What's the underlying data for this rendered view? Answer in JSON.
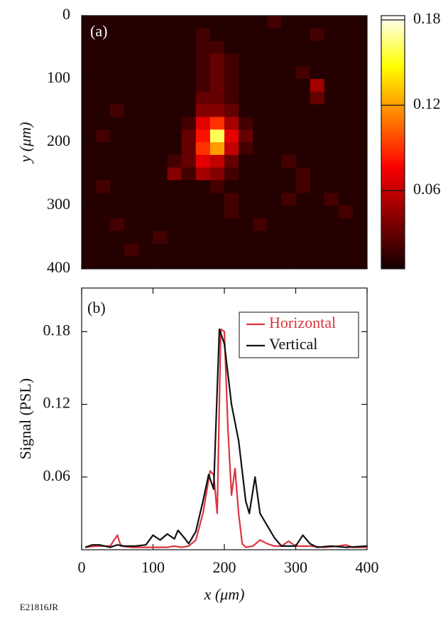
{
  "chart_data": [
    {
      "type": "heatmap",
      "label": "(a)",
      "y_label": "y (μm)",
      "x": [
        10,
        30,
        50,
        70,
        90,
        110,
        130,
        150,
        170,
        190,
        210,
        230,
        250,
        270,
        290,
        310,
        330,
        350,
        370,
        390
      ],
      "y": [
        10,
        30,
        50,
        70,
        90,
        110,
        130,
        150,
        170,
        190,
        210,
        230,
        250,
        270,
        290,
        310,
        330,
        350,
        370,
        390
      ],
      "z": [
        [
          0.01,
          0.01,
          0.01,
          0.01,
          0.01,
          0.01,
          0.01,
          0.01,
          0.01,
          0.01,
          0.01,
          0.01,
          0.01,
          0.02,
          0.01,
          0.01,
          0.01,
          0.01,
          0.01,
          0.01
        ],
        [
          0.01,
          0.01,
          0.01,
          0.01,
          0.01,
          0.01,
          0.01,
          0.01,
          0.02,
          0.01,
          0.01,
          0.01,
          0.01,
          0.01,
          0.01,
          0.01,
          0.02,
          0.01,
          0.01,
          0.01
        ],
        [
          0.01,
          0.01,
          0.01,
          0.01,
          0.01,
          0.01,
          0.01,
          0.01,
          0.02,
          0.02,
          0.01,
          0.01,
          0.01,
          0.01,
          0.01,
          0.01,
          0.01,
          0.01,
          0.01,
          0.01
        ],
        [
          0.01,
          0.01,
          0.01,
          0.01,
          0.01,
          0.01,
          0.01,
          0.01,
          0.02,
          0.03,
          0.02,
          0.01,
          0.01,
          0.01,
          0.01,
          0.01,
          0.01,
          0.01,
          0.01,
          0.01
        ],
        [
          0.01,
          0.01,
          0.01,
          0.01,
          0.01,
          0.01,
          0.01,
          0.01,
          0.02,
          0.03,
          0.02,
          0.01,
          0.01,
          0.01,
          0.01,
          0.02,
          0.01,
          0.01,
          0.01,
          0.01
        ],
        [
          0.01,
          0.01,
          0.01,
          0.01,
          0.01,
          0.01,
          0.01,
          0.01,
          0.02,
          0.03,
          0.02,
          0.01,
          0.01,
          0.01,
          0.01,
          0.01,
          0.05,
          0.01,
          0.01,
          0.01
        ],
        [
          0.01,
          0.01,
          0.01,
          0.01,
          0.01,
          0.01,
          0.01,
          0.01,
          0.03,
          0.03,
          0.02,
          0.01,
          0.01,
          0.01,
          0.01,
          0.01,
          0.03,
          0.01,
          0.01,
          0.01
        ],
        [
          0.01,
          0.01,
          0.02,
          0.01,
          0.01,
          0.01,
          0.01,
          0.01,
          0.04,
          0.04,
          0.03,
          0.01,
          0.01,
          0.01,
          0.01,
          0.01,
          0.01,
          0.01,
          0.01,
          0.01
        ],
        [
          0.01,
          0.01,
          0.01,
          0.01,
          0.01,
          0.01,
          0.01,
          0.02,
          0.07,
          0.09,
          0.05,
          0.02,
          0.01,
          0.01,
          0.01,
          0.01,
          0.01,
          0.01,
          0.01,
          0.01
        ],
        [
          0.01,
          0.02,
          0.01,
          0.01,
          0.01,
          0.01,
          0.01,
          0.03,
          0.08,
          0.16,
          0.07,
          0.03,
          0.01,
          0.01,
          0.01,
          0.01,
          0.01,
          0.01,
          0.01,
          0.01
        ],
        [
          0.01,
          0.01,
          0.01,
          0.01,
          0.01,
          0.01,
          0.01,
          0.03,
          0.09,
          0.12,
          0.06,
          0.02,
          0.01,
          0.01,
          0.01,
          0.01,
          0.01,
          0.01,
          0.01,
          0.01
        ],
        [
          0.01,
          0.01,
          0.01,
          0.01,
          0.01,
          0.01,
          0.02,
          0.03,
          0.07,
          0.06,
          0.03,
          0.01,
          0.01,
          0.01,
          0.02,
          0.01,
          0.01,
          0.01,
          0.01,
          0.01
        ],
        [
          0.01,
          0.01,
          0.01,
          0.01,
          0.01,
          0.01,
          0.04,
          0.02,
          0.05,
          0.04,
          0.02,
          0.01,
          0.01,
          0.01,
          0.01,
          0.02,
          0.01,
          0.01,
          0.01,
          0.01
        ],
        [
          0.01,
          0.02,
          0.01,
          0.01,
          0.01,
          0.01,
          0.01,
          0.01,
          0.01,
          0.02,
          0.01,
          0.01,
          0.01,
          0.01,
          0.01,
          0.02,
          0.01,
          0.01,
          0.01,
          0.01
        ],
        [
          0.01,
          0.01,
          0.01,
          0.01,
          0.01,
          0.01,
          0.01,
          0.01,
          0.01,
          0.01,
          0.02,
          0.01,
          0.01,
          0.01,
          0.02,
          0.01,
          0.01,
          0.02,
          0.01,
          0.01
        ],
        [
          0.01,
          0.01,
          0.01,
          0.01,
          0.01,
          0.01,
          0.01,
          0.01,
          0.01,
          0.01,
          0.02,
          0.01,
          0.01,
          0.01,
          0.01,
          0.01,
          0.01,
          0.01,
          0.02,
          0.01
        ],
        [
          0.01,
          0.01,
          0.02,
          0.01,
          0.01,
          0.01,
          0.01,
          0.01,
          0.01,
          0.01,
          0.01,
          0.01,
          0.02,
          0.01,
          0.01,
          0.01,
          0.01,
          0.01,
          0.01,
          0.01
        ],
        [
          0.01,
          0.01,
          0.01,
          0.01,
          0.01,
          0.02,
          0.01,
          0.01,
          0.01,
          0.01,
          0.01,
          0.01,
          0.01,
          0.01,
          0.01,
          0.01,
          0.01,
          0.01,
          0.01,
          0.01
        ],
        [
          0.01,
          0.01,
          0.01,
          0.02,
          0.01,
          0.01,
          0.01,
          0.01,
          0.01,
          0.01,
          0.01,
          0.01,
          0.01,
          0.01,
          0.01,
          0.01,
          0.01,
          0.01,
          0.01,
          0.01
        ],
        [
          0.01,
          0.01,
          0.01,
          0.01,
          0.01,
          0.01,
          0.01,
          0.01,
          0.01,
          0.01,
          0.01,
          0.01,
          0.01,
          0.01,
          0.01,
          0.01,
          0.01,
          0.01,
          0.01,
          0.01
        ]
      ],
      "xlim": [
        0,
        400
      ],
      "ylim": [
        0,
        400
      ],
      "y_inverted": true,
      "xticks": [
        0,
        100,
        200,
        300,
        400
      ],
      "yticks": [
        0,
        100,
        200,
        300,
        400
      ],
      "colormap": "hot",
      "clim": [
        0.005,
        0.183
      ],
      "cticks": [
        0.06,
        0.12,
        0.18
      ]
    },
    {
      "type": "line",
      "label": "(b)",
      "x_label": "x (μm)",
      "y_label": "Signal (PSL)",
      "series": [
        {
          "name": "Horizontal",
          "color": "#d9363e",
          "x": [
            5,
            20,
            40,
            50,
            55,
            70,
            100,
            120,
            130,
            140,
            150,
            160,
            170,
            180,
            185,
            190,
            195,
            200,
            205,
            210,
            215,
            220,
            225,
            230,
            240,
            250,
            260,
            270,
            280,
            290,
            300,
            320,
            340,
            360,
            370,
            380,
            400
          ],
          "values": [
            0.002,
            0.003,
            0.003,
            0.012,
            0.003,
            0.002,
            0.002,
            0.002,
            0.003,
            0.002,
            0.003,
            0.008,
            0.03,
            0.065,
            0.062,
            0.03,
            0.182,
            0.18,
            0.1,
            0.045,
            0.067,
            0.03,
            0.005,
            0.002,
            0.003,
            0.008,
            0.005,
            0.003,
            0.003,
            0.007,
            0.003,
            0.003,
            0.002,
            0.003,
            0.004,
            0.002,
            0.002
          ]
        },
        {
          "name": "Vertical",
          "color": "#111111",
          "x": [
            5,
            15,
            25,
            40,
            50,
            60,
            75,
            90,
            100,
            110,
            120,
            130,
            135,
            145,
            150,
            160,
            170,
            178,
            185,
            193,
            200,
            210,
            220,
            230,
            235,
            243,
            250,
            260,
            270,
            280,
            300,
            310,
            320,
            330,
            350,
            370,
            400
          ],
          "values": [
            0.002,
            0.004,
            0.004,
            0.002,
            0.004,
            0.003,
            0.003,
            0.004,
            0.012,
            0.008,
            0.013,
            0.009,
            0.016,
            0.009,
            0.005,
            0.015,
            0.04,
            0.062,
            0.05,
            0.182,
            0.17,
            0.12,
            0.09,
            0.04,
            0.03,
            0.06,
            0.03,
            0.02,
            0.01,
            0.003,
            0.003,
            0.012,
            0.005,
            0.002,
            0.003,
            0.002,
            0.003
          ]
        }
      ],
      "xlim": [
        0,
        400
      ],
      "ylim": [
        0,
        0.216
      ],
      "xticks": [
        0,
        100,
        200,
        300,
        400
      ],
      "yticks": [
        0.06,
        0.12,
        0.18
      ],
      "legend": "upper right"
    }
  ],
  "footer": "E21816JR"
}
